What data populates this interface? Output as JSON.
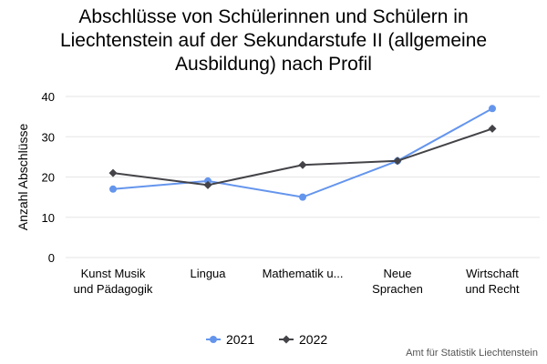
{
  "chart_data": {
    "type": "line",
    "title_lines": [
      "Abschlüsse von Schülerinnen und Schülern in",
      "Liechtenstein auf der Sekundarstufe II (allgemeine",
      "Ausbildung) nach Profil"
    ],
    "ylabel": "Anzahl Abschlüsse",
    "xlabel": "",
    "categories": [
      [
        "Kunst Musik",
        "und Pädagogik"
      ],
      [
        "Lingua"
      ],
      [
        "Mathematik u..."
      ],
      [
        "Neue",
        "Sprachen"
      ],
      [
        "Wirtschaft",
        "und Recht"
      ]
    ],
    "yticks": [
      "0",
      "10",
      "20",
      "30",
      "40"
    ],
    "ylim": [
      0,
      40
    ],
    "grid": true,
    "legend_position": "bottom",
    "series": [
      {
        "name": "2021",
        "color": "#6495ed",
        "marker": "circle",
        "values": [
          17,
          19,
          15,
          24,
          37
        ]
      },
      {
        "name": "2022",
        "color": "#434348",
        "marker": "diamond",
        "values": [
          21,
          18,
          23,
          24,
          32
        ]
      }
    ]
  },
  "source": "Amt für Statistik Liechtenstein"
}
